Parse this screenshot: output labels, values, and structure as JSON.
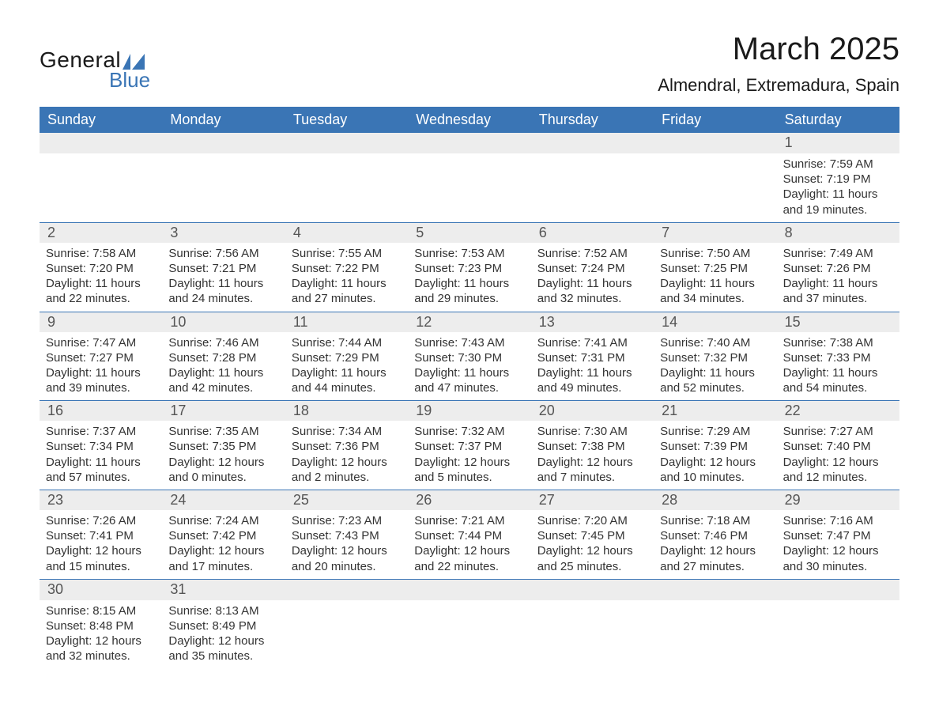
{
  "brand": {
    "main": "General",
    "sub": "Blue",
    "accent_color": "#3a75b5"
  },
  "title": "March 2025",
  "location": "Almendral, Extremadura, Spain",
  "colors": {
    "header_bg": "#3a75b5",
    "header_text": "#ffffff",
    "daynum_bg": "#ededed",
    "text": "#333333",
    "border": "#3a75b5"
  },
  "day_names": [
    "Sunday",
    "Monday",
    "Tuesday",
    "Wednesday",
    "Thursday",
    "Friday",
    "Saturday"
  ],
  "weeks": [
    [
      null,
      null,
      null,
      null,
      null,
      null,
      {
        "n": "1",
        "sr": "Sunrise: 7:59 AM",
        "ss": "Sunset: 7:19 PM",
        "d1": "Daylight: 11 hours",
        "d2": "and 19 minutes."
      }
    ],
    [
      {
        "n": "2",
        "sr": "Sunrise: 7:58 AM",
        "ss": "Sunset: 7:20 PM",
        "d1": "Daylight: 11 hours",
        "d2": "and 22 minutes."
      },
      {
        "n": "3",
        "sr": "Sunrise: 7:56 AM",
        "ss": "Sunset: 7:21 PM",
        "d1": "Daylight: 11 hours",
        "d2": "and 24 minutes."
      },
      {
        "n": "4",
        "sr": "Sunrise: 7:55 AM",
        "ss": "Sunset: 7:22 PM",
        "d1": "Daylight: 11 hours",
        "d2": "and 27 minutes."
      },
      {
        "n": "5",
        "sr": "Sunrise: 7:53 AM",
        "ss": "Sunset: 7:23 PM",
        "d1": "Daylight: 11 hours",
        "d2": "and 29 minutes."
      },
      {
        "n": "6",
        "sr": "Sunrise: 7:52 AM",
        "ss": "Sunset: 7:24 PM",
        "d1": "Daylight: 11 hours",
        "d2": "and 32 minutes."
      },
      {
        "n": "7",
        "sr": "Sunrise: 7:50 AM",
        "ss": "Sunset: 7:25 PM",
        "d1": "Daylight: 11 hours",
        "d2": "and 34 minutes."
      },
      {
        "n": "8",
        "sr": "Sunrise: 7:49 AM",
        "ss": "Sunset: 7:26 PM",
        "d1": "Daylight: 11 hours",
        "d2": "and 37 minutes."
      }
    ],
    [
      {
        "n": "9",
        "sr": "Sunrise: 7:47 AM",
        "ss": "Sunset: 7:27 PM",
        "d1": "Daylight: 11 hours",
        "d2": "and 39 minutes."
      },
      {
        "n": "10",
        "sr": "Sunrise: 7:46 AM",
        "ss": "Sunset: 7:28 PM",
        "d1": "Daylight: 11 hours",
        "d2": "and 42 minutes."
      },
      {
        "n": "11",
        "sr": "Sunrise: 7:44 AM",
        "ss": "Sunset: 7:29 PM",
        "d1": "Daylight: 11 hours",
        "d2": "and 44 minutes."
      },
      {
        "n": "12",
        "sr": "Sunrise: 7:43 AM",
        "ss": "Sunset: 7:30 PM",
        "d1": "Daylight: 11 hours",
        "d2": "and 47 minutes."
      },
      {
        "n": "13",
        "sr": "Sunrise: 7:41 AM",
        "ss": "Sunset: 7:31 PM",
        "d1": "Daylight: 11 hours",
        "d2": "and 49 minutes."
      },
      {
        "n": "14",
        "sr": "Sunrise: 7:40 AM",
        "ss": "Sunset: 7:32 PM",
        "d1": "Daylight: 11 hours",
        "d2": "and 52 minutes."
      },
      {
        "n": "15",
        "sr": "Sunrise: 7:38 AM",
        "ss": "Sunset: 7:33 PM",
        "d1": "Daylight: 11 hours",
        "d2": "and 54 minutes."
      }
    ],
    [
      {
        "n": "16",
        "sr": "Sunrise: 7:37 AM",
        "ss": "Sunset: 7:34 PM",
        "d1": "Daylight: 11 hours",
        "d2": "and 57 minutes."
      },
      {
        "n": "17",
        "sr": "Sunrise: 7:35 AM",
        "ss": "Sunset: 7:35 PM",
        "d1": "Daylight: 12 hours",
        "d2": "and 0 minutes."
      },
      {
        "n": "18",
        "sr": "Sunrise: 7:34 AM",
        "ss": "Sunset: 7:36 PM",
        "d1": "Daylight: 12 hours",
        "d2": "and 2 minutes."
      },
      {
        "n": "19",
        "sr": "Sunrise: 7:32 AM",
        "ss": "Sunset: 7:37 PM",
        "d1": "Daylight: 12 hours",
        "d2": "and 5 minutes."
      },
      {
        "n": "20",
        "sr": "Sunrise: 7:30 AM",
        "ss": "Sunset: 7:38 PM",
        "d1": "Daylight: 12 hours",
        "d2": "and 7 minutes."
      },
      {
        "n": "21",
        "sr": "Sunrise: 7:29 AM",
        "ss": "Sunset: 7:39 PM",
        "d1": "Daylight: 12 hours",
        "d2": "and 10 minutes."
      },
      {
        "n": "22",
        "sr": "Sunrise: 7:27 AM",
        "ss": "Sunset: 7:40 PM",
        "d1": "Daylight: 12 hours",
        "d2": "and 12 minutes."
      }
    ],
    [
      {
        "n": "23",
        "sr": "Sunrise: 7:26 AM",
        "ss": "Sunset: 7:41 PM",
        "d1": "Daylight: 12 hours",
        "d2": "and 15 minutes."
      },
      {
        "n": "24",
        "sr": "Sunrise: 7:24 AM",
        "ss": "Sunset: 7:42 PM",
        "d1": "Daylight: 12 hours",
        "d2": "and 17 minutes."
      },
      {
        "n": "25",
        "sr": "Sunrise: 7:23 AM",
        "ss": "Sunset: 7:43 PM",
        "d1": "Daylight: 12 hours",
        "d2": "and 20 minutes."
      },
      {
        "n": "26",
        "sr": "Sunrise: 7:21 AM",
        "ss": "Sunset: 7:44 PM",
        "d1": "Daylight: 12 hours",
        "d2": "and 22 minutes."
      },
      {
        "n": "27",
        "sr": "Sunrise: 7:20 AM",
        "ss": "Sunset: 7:45 PM",
        "d1": "Daylight: 12 hours",
        "d2": "and 25 minutes."
      },
      {
        "n": "28",
        "sr": "Sunrise: 7:18 AM",
        "ss": "Sunset: 7:46 PM",
        "d1": "Daylight: 12 hours",
        "d2": "and 27 minutes."
      },
      {
        "n": "29",
        "sr": "Sunrise: 7:16 AM",
        "ss": "Sunset: 7:47 PM",
        "d1": "Daylight: 12 hours",
        "d2": "and 30 minutes."
      }
    ],
    [
      {
        "n": "30",
        "sr": "Sunrise: 8:15 AM",
        "ss": "Sunset: 8:48 PM",
        "d1": "Daylight: 12 hours",
        "d2": "and 32 minutes."
      },
      {
        "n": "31",
        "sr": "Sunrise: 8:13 AM",
        "ss": "Sunset: 8:49 PM",
        "d1": "Daylight: 12 hours",
        "d2": "and 35 minutes."
      },
      null,
      null,
      null,
      null,
      null
    ]
  ]
}
